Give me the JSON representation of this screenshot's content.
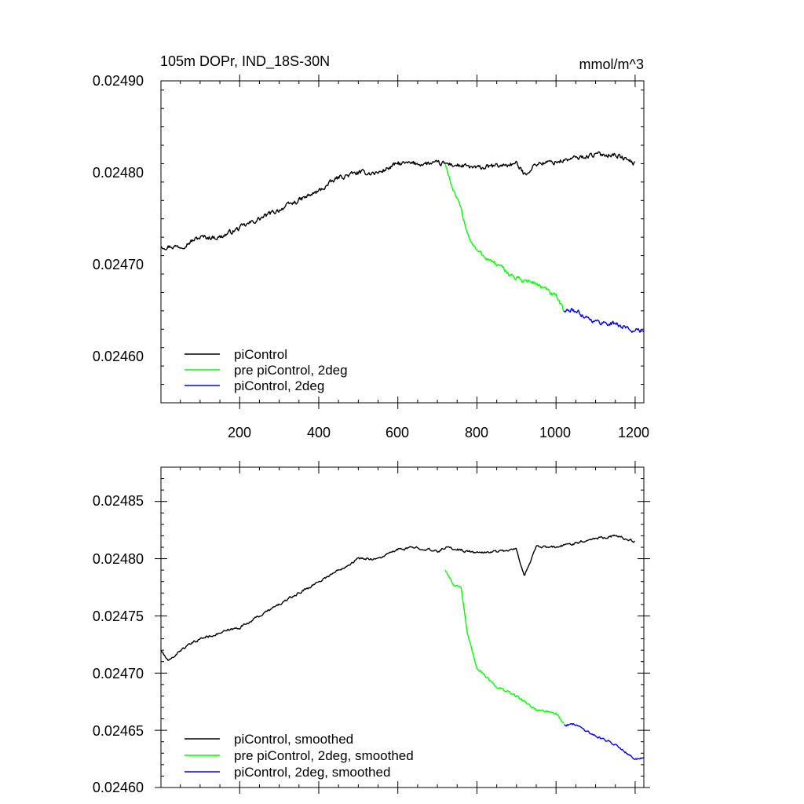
{
  "colors": {
    "piControl": "#000000",
    "pre_piControl_2deg": "#00ff00",
    "piControl_2deg": "#0000ff"
  },
  "chart_data": [
    {
      "type": "line",
      "title": "105m DOPr, IND_18S-30N",
      "units": "mmol/m^3",
      "xlabel": "",
      "ylabel": "",
      "xlim": [
        1,
        1222
      ],
      "ylim": [
        0.02455,
        0.0249
      ],
      "xticks": [
        200,
        400,
        600,
        800,
        1000,
        1200
      ],
      "xtick_labels": [
        "200",
        "400",
        "600",
        "800",
        "1000",
        "1200"
      ],
      "yticks": [
        0.0246,
        0.0247,
        0.0248,
        0.0249
      ],
      "ytick_labels": [
        "0.02460",
        "0.02470",
        "0.02480",
        "0.02490"
      ],
      "legend": {
        "position": "bottom-left",
        "entries": [
          "piControl",
          "pre piControl, 2deg",
          "piControl, 2deg"
        ]
      },
      "series": [
        {
          "name": "piControl",
          "color": "#000000",
          "noise": 2.2e-06,
          "anchors": [
            [
              1,
              0.02472
            ],
            [
              50,
              0.02472
            ],
            [
              100,
              0.02473
            ],
            [
              150,
              0.02473
            ],
            [
              200,
              0.02474
            ],
            [
              250,
              0.02475
            ],
            [
              300,
              0.02476
            ],
            [
              350,
              0.02477
            ],
            [
              400,
              0.02478
            ],
            [
              450,
              0.024795
            ],
            [
              500,
              0.0248
            ],
            [
              550,
              0.0248
            ],
            [
              600,
              0.02481
            ],
            [
              650,
              0.02481
            ],
            [
              700,
              0.02481
            ],
            [
              720,
              0.02481
            ],
            [
              800,
              0.024805
            ],
            [
              900,
              0.02481
            ],
            [
              920,
              0.024798
            ],
            [
              950,
              0.02481
            ],
            [
              1000,
              0.024812
            ],
            [
              1100,
              0.02482
            ],
            [
              1150,
              0.02482
            ],
            [
              1200,
              0.02481
            ]
          ]
        },
        {
          "name": "pre piControl, 2deg",
          "color": "#00ff00",
          "noise": 2.2e-06,
          "anchors": [
            [
              720,
              0.02481
            ],
            [
              740,
              0.02478
            ],
            [
              760,
              0.02476
            ],
            [
              780,
              0.02473
            ],
            [
              800,
              0.024715
            ],
            [
              850,
              0.0247
            ],
            [
              900,
              0.024685
            ],
            [
              950,
              0.02468
            ],
            [
              1000,
              0.024665
            ],
            [
              1020,
              0.02465
            ]
          ]
        },
        {
          "name": "piControl, 2deg",
          "color": "#0000ff",
          "noise": 2.2e-06,
          "anchors": [
            [
              1020,
              0.02465
            ],
            [
              1050,
              0.02465
            ],
            [
              1100,
              0.024638
            ],
            [
              1150,
              0.024636
            ],
            [
              1200,
              0.024628
            ],
            [
              1222,
              0.024628
            ]
          ]
        }
      ]
    },
    {
      "type": "line",
      "title": "",
      "xlabel": "",
      "ylabel": "",
      "xlim": [
        1,
        1222
      ],
      "ylim": [
        0.0246,
        0.02488
      ],
      "xticks": [
        200,
        400,
        600,
        800,
        1000,
        1200
      ],
      "xtick_labels": [],
      "yticks": [
        0.0246,
        0.02465,
        0.0247,
        0.02475,
        0.0248,
        0.02485
      ],
      "ytick_labels": [
        "0.02460",
        "0.02465",
        "0.02470",
        "0.02475",
        "0.02480",
        "0.02485"
      ],
      "legend": {
        "position": "bottom-left",
        "entries": [
          "piControl, smoothed",
          "pre piControl, 2deg, smoothed",
          "piControl, 2deg, smoothed"
        ]
      },
      "series": [
        {
          "name": "piControl, smoothed",
          "color": "#000000",
          "noise": 9e-07,
          "anchors": [
            [
              1,
              0.02472
            ],
            [
              20,
              0.02471
            ],
            [
              50,
              0.02472
            ],
            [
              100,
              0.02473
            ],
            [
              150,
              0.024735
            ],
            [
              200,
              0.02474
            ],
            [
              250,
              0.02475
            ],
            [
              300,
              0.02476
            ],
            [
              350,
              0.02477
            ],
            [
              400,
              0.02478
            ],
            [
              450,
              0.02479
            ],
            [
              500,
              0.0248
            ],
            [
              550,
              0.0248
            ],
            [
              600,
              0.024808
            ],
            [
              650,
              0.02481
            ],
            [
              700,
              0.024806
            ],
            [
              720,
              0.02481
            ],
            [
              800,
              0.024805
            ],
            [
              900,
              0.024808
            ],
            [
              920,
              0.024785
            ],
            [
              950,
              0.02481
            ],
            [
              1000,
              0.02481
            ],
            [
              1100,
              0.024818
            ],
            [
              1150,
              0.02482
            ],
            [
              1200,
              0.024815
            ]
          ]
        },
        {
          "name": "pre piControl, 2deg, smoothed",
          "color": "#00ff00",
          "noise": 9e-07,
          "anchors": [
            [
              720,
              0.02479
            ],
            [
              740,
              0.024778
            ],
            [
              760,
              0.024775
            ],
            [
              775,
              0.024735
            ],
            [
              800,
              0.024705
            ],
            [
              850,
              0.024688
            ],
            [
              900,
              0.02468
            ],
            [
              950,
              0.024668
            ],
            [
              1000,
              0.024665
            ],
            [
              1020,
              0.024655
            ]
          ]
        },
        {
          "name": "piControl, 2deg, smoothed",
          "color": "#0000ff",
          "noise": 9e-07,
          "anchors": [
            [
              1020,
              0.024655
            ],
            [
              1050,
              0.024655
            ],
            [
              1100,
              0.024645
            ],
            [
              1150,
              0.024638
            ],
            [
              1200,
              0.024625
            ],
            [
              1222,
              0.024625
            ]
          ]
        }
      ]
    }
  ]
}
